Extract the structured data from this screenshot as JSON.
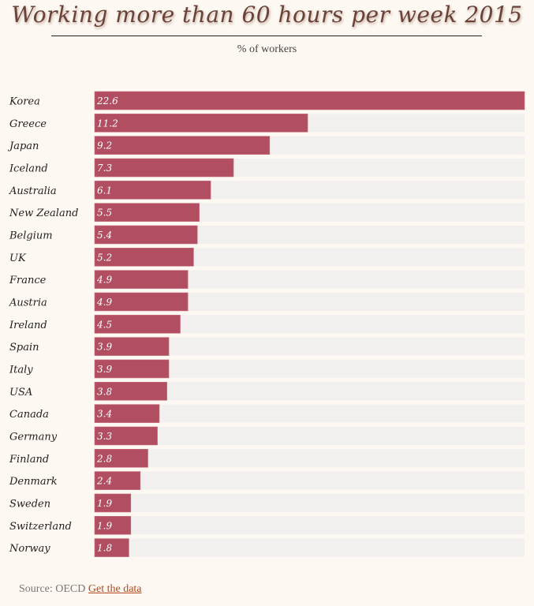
{
  "chart_data": {
    "type": "bar",
    "orientation": "horizontal",
    "title": "Working more than 60 hours per week 2015",
    "subtitle": "% of workers",
    "xlabel": "",
    "ylabel": "",
    "xlim": [
      0,
      22.6
    ],
    "grid": false,
    "categories": [
      "Korea",
      "Greece",
      "Japan",
      "Iceland",
      "Australia",
      "New Zealand",
      "Belgium",
      "UK",
      "France",
      "Austria",
      "Ireland",
      "Spain",
      "Italy",
      "USA",
      "Canada",
      "Germany",
      "Finland",
      "Denmark",
      "Sweden",
      "Switzerland",
      "Norway"
    ],
    "values": [
      22.6,
      11.2,
      9.2,
      7.3,
      6.1,
      5.5,
      5.4,
      5.2,
      4.9,
      4.9,
      4.5,
      3.9,
      3.9,
      3.8,
      3.4,
      3.3,
      2.8,
      2.4,
      1.9,
      1.9,
      1.8
    ],
    "value_labels": [
      "22.6",
      "11.2",
      "9.2",
      "7.3",
      "6.1",
      "5.5",
      "5.4",
      "5.2",
      "4.9",
      "4.9",
      "4.5",
      "3.9",
      "3.9",
      "3.8",
      "3.4",
      "3.3",
      "2.8",
      "2.4",
      "1.9",
      "1.9",
      "1.8"
    ],
    "colors": {
      "bar": "#b14e62",
      "track": "#f1f0ef",
      "background": "#fdf8f2"
    }
  },
  "footer": {
    "source_text": "Source: OECD",
    "link_label": "Get the data"
  }
}
